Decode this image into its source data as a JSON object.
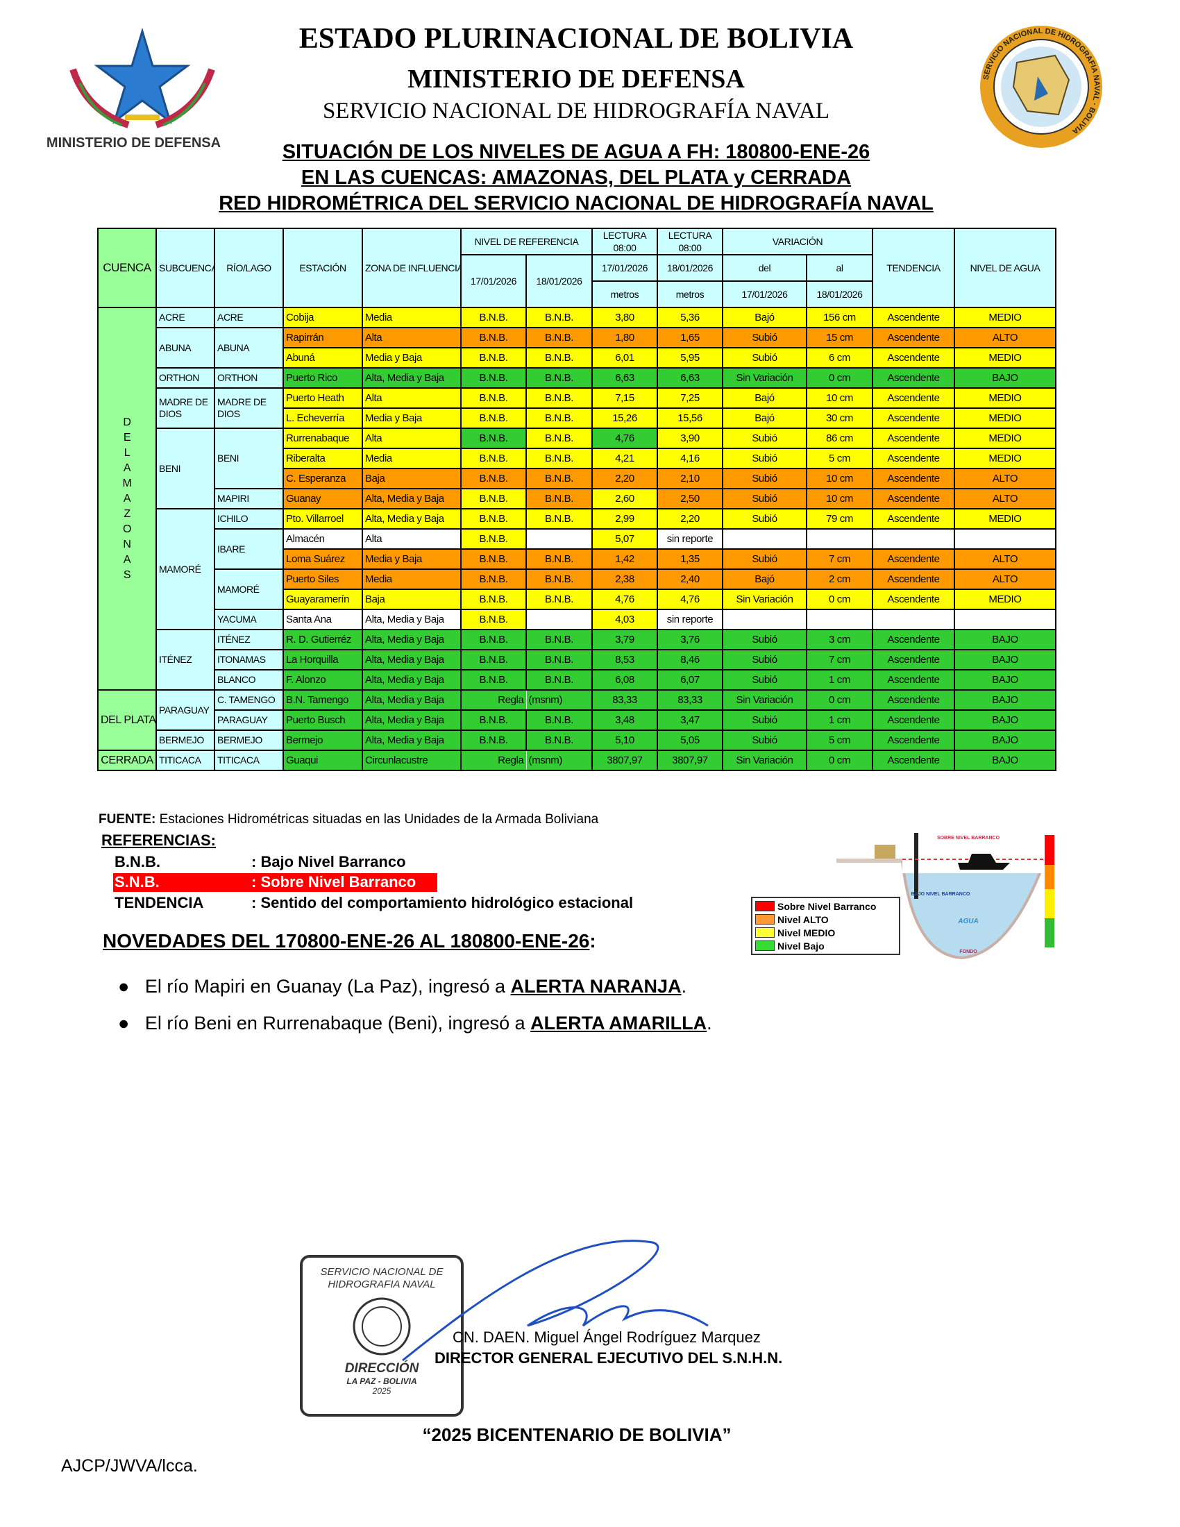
{
  "header": {
    "line1": "ESTADO PLURINACIONAL DE BOLIVIA",
    "line2": "MINISTERIO DE DEFENSA",
    "line3": "SERVICIO NACIONAL DE HIDROGRAFÍA NAVAL",
    "left_logo_text": "MINISTERIO DE DEFENSA",
    "right_logo_text": "SERVICIO NACIONAL DE HIDROGRAFIA NAVAL · BOLIVIA"
  },
  "subtitle": {
    "l1": "SITUACIÓN DE LOS NIVELES DE AGUA A FH: 180800-ENE-26",
    "l2": "EN LAS CUENCAS: AMAZONAS, DEL PLATA y CERRADA",
    "l3": "RED HIDROMÉTRICA DEL SERVICIO NACIONAL DE HIDROGRAFÍA NAVAL"
  },
  "colors": {
    "y": "#ffff00",
    "o": "#ff9900",
    "g": "#33cc33",
    "w": "#ffffff",
    "header": "#ccffff",
    "cuenca": "#99ff99"
  },
  "table": {
    "h": {
      "cuenca": "CUENCA",
      "subcuenca": "SUBCUENCA",
      "rio": "RÍO/LAGO",
      "estacion": "ESTACIÓN",
      "zona": "ZONA DE INFLUENCIA",
      "nivel_ref": "NIVEL DE REFERENCIA",
      "ref17": "17/01/2026",
      "ref18": "18/01/2026",
      "lect1": "LECTURA 08:00",
      "lect2": "LECTURA 08:00",
      "lect17": "17/01/2026",
      "lect18": "18/01/2026",
      "metros1": "metros",
      "metros2": "metros",
      "variacion": "VARIACIÓN",
      "del": "del",
      "al": "al",
      "var17": "17/01/2026",
      "var18": "18/01/2026",
      "tendencia": "TENDENCIA",
      "nivel": "NIVEL DE AGUA"
    },
    "rows": [
      {
        "cuenca": "DEL AMAZONAS",
        "sub": "ACRE",
        "rio": "ACRE",
        "cells": [
          "Cobija",
          "Media",
          "B.N.B.",
          "B.N.B.",
          "3,80",
          "5,36",
          "Bajó",
          "156 cm",
          "Ascendente",
          "MEDIO"
        ],
        "colors": "yyyyyyyyyy"
      },
      {
        "cuenca": "DEL AMAZONAS",
        "sub": "ABUNA",
        "rio": "ABUNA",
        "cells": [
          "Rapirrán",
          "Alta",
          "B.N.B.",
          "B.N.B.",
          "1,80",
          "1,65",
          "Subió",
          "15 cm",
          "Ascendente",
          "ALTO"
        ],
        "colors": "oooooooooo"
      },
      {
        "cuenca": "DEL AMAZONAS",
        "sub": "ABUNA",
        "rio": "ABUNA",
        "cells": [
          "Abuná",
          "Media y Baja",
          "B.N.B.",
          "B.N.B.",
          "6,01",
          "5,95",
          "Subió",
          "6 cm",
          "Ascendente",
          "MEDIO"
        ],
        "colors": "yyyyyyyyyy"
      },
      {
        "cuenca": "DEL AMAZONAS",
        "sub": "ORTHON",
        "rio": "ORTHON",
        "cells": [
          "Puerto Rico",
          "Alta, Media y Baja",
          "B.N.B.",
          "B.N.B.",
          "6,63",
          "6,63",
          "Sin Variación",
          "0 cm",
          "Ascendente",
          "BAJO"
        ],
        "colors": "gggggggggg"
      },
      {
        "cuenca": "DEL AMAZONAS",
        "sub": "MADRE DE DIOS",
        "rio": "MADRE DE DIOS",
        "cells": [
          "Puerto Heath",
          "Alta",
          "B.N.B.",
          "B.N.B.",
          "7,15",
          "7,25",
          "Bajó",
          "10 cm",
          "Ascendente",
          "MEDIO"
        ],
        "colors": "yyyyyyyyyy"
      },
      {
        "cuenca": "DEL AMAZONAS",
        "sub": "MADRE DE DIOS",
        "rio": "MADRE DE DIOS",
        "cells": [
          "L. Echeverría",
          "Media y Baja",
          "B.N.B.",
          "B.N.B.",
          "15,26",
          "15,56",
          "Bajó",
          "30 cm",
          "Ascendente",
          "MEDIO"
        ],
        "colors": "yyyyyyyyyy"
      },
      {
        "cuenca": "DEL AMAZONAS",
        "sub": "BENI",
        "rio": "BENI",
        "cells": [
          "Rurrenabaque",
          "Alta",
          "B.N.B.",
          "B.N.B.",
          "4,76",
          "3,90",
          "Subió",
          "86 cm",
          "Ascendente",
          "MEDIO"
        ],
        "colors": "yygygyyyyy"
      },
      {
        "cuenca": "DEL AMAZONAS",
        "sub": "BENI",
        "rio": "BENI",
        "cells": [
          "Riberalta",
          "Media",
          "B.N.B.",
          "B.N.B.",
          "4,21",
          "4,16",
          "Subió",
          "5 cm",
          "Ascendente",
          "MEDIO"
        ],
        "colors": "yyyyyyyyyy"
      },
      {
        "cuenca": "DEL AMAZONAS",
        "sub": "BENI",
        "rio": "BENI",
        "cells": [
          "C. Esperanza",
          "Baja",
          "B.N.B.",
          "B.N.B.",
          "2,20",
          "2,10",
          "Subió",
          "10 cm",
          "Ascendente",
          "ALTO"
        ],
        "colors": "oooooooooo"
      },
      {
        "cuenca": "DEL AMAZONAS",
        "sub": "BENI",
        "rio": "MAPIRI",
        "cells": [
          "Guanay",
          "Alta, Media y Baja",
          "B.N.B.",
          "B.N.B.",
          "2,60",
          "2,50",
          "Subió",
          "10 cm",
          "Ascendente",
          "ALTO"
        ],
        "colors": "ooyoyooooo"
      },
      {
        "cuenca": "DEL AMAZONAS",
        "sub": "MAMORÉ",
        "rio": "ICHILO",
        "cells": [
          "Pto. Villarroel",
          "Alta, Media y Baja",
          "B.N.B.",
          "B.N.B.",
          "2,99",
          "2,20",
          "Subió",
          "79 cm",
          "Ascendente",
          "MEDIO"
        ],
        "colors": "yyyyyyyyyy"
      },
      {
        "cuenca": "DEL AMAZONAS",
        "sub": "MAMORÉ",
        "rio": "IBARE",
        "cells": [
          "Almacén",
          "Alta",
          "B.N.B.",
          "",
          "5,07",
          "sin reporte",
          "",
          "",
          "",
          ""
        ],
        "colors": "wwywywwwww"
      },
      {
        "cuenca": "DEL AMAZONAS",
        "sub": "MAMORÉ",
        "rio": "IBARE",
        "cells": [
          "Loma Suárez",
          "Media y Baja",
          "B.N.B.",
          "B.N.B.",
          "1,42",
          "1,35",
          "Subió",
          "7 cm",
          "Ascendente",
          "ALTO"
        ],
        "colors": "oooooooooo"
      },
      {
        "cuenca": "DEL AMAZONAS",
        "sub": "MAMORÉ",
        "rio": "MAMORÉ",
        "cells": [
          "Puerto Siles",
          "Media",
          "B.N.B.",
          "B.N.B.",
          "2,38",
          "2,40",
          "Bajó",
          "2 cm",
          "Ascendente",
          "ALTO"
        ],
        "colors": "oooooooooo"
      },
      {
        "cuenca": "DEL AMAZONAS",
        "sub": "MAMORÉ",
        "rio": "MAMORÉ",
        "cells": [
          "Guayaramerín",
          "Baja",
          "B.N.B.",
          "B.N.B.",
          "4,76",
          "4,76",
          "Sin Variación",
          "0 cm",
          "Ascendente",
          "MEDIO"
        ],
        "colors": "yyyyyyyyyy"
      },
      {
        "cuenca": "DEL AMAZONAS",
        "sub": "MAMORÉ",
        "rio": "YACUMA",
        "cells": [
          "Santa Ana",
          "Alta, Media y Baja",
          "B.N.B.",
          "",
          "4,03",
          "sin reporte",
          "",
          "",
          "",
          ""
        ],
        "colors": "wwywywwwww"
      },
      {
        "cuenca": "DEL AMAZONAS",
        "sub": "ITÉNEZ",
        "rio": "ITÉNEZ",
        "cells": [
          "R. D. Gutierréz",
          "Alta, Media y Baja",
          "B.N.B.",
          "B.N.B.",
          "3,79",
          "3,76",
          "Subió",
          "3 cm",
          "Ascendente",
          "BAJO"
        ],
        "colors": "gggggggggg"
      },
      {
        "cuenca": "DEL AMAZONAS",
        "sub": "ITÉNEZ",
        "rio": "ITONAMAS",
        "cells": [
          "La Horquilla",
          "Alta, Media y Baja",
          "B.N.B.",
          "B.N.B.",
          "8,53",
          "8,46",
          "Subió",
          "7 cm",
          "Ascendente",
          "BAJO"
        ],
        "colors": "gggggggggg"
      },
      {
        "cuenca": "DEL AMAZONAS",
        "sub": "ITÉNEZ",
        "rio": "BLANCO",
        "cells": [
          "F. Alonzo",
          "Alta, Media y Baja",
          "B.N.B.",
          "B.N.B.",
          "6,08",
          "6,07",
          "Subió",
          "1 cm",
          "Ascendente",
          "BAJO"
        ],
        "colors": "gggggggggg"
      },
      {
        "cuenca": "DEL PLATA",
        "sub": "PARAGUAY",
        "rio": "C. TAMENGO",
        "cells": [
          "B.N. Tamengo",
          "Alta, Media y Baja",
          "Regla",
          "(msnm)",
          "83,33",
          "83,33",
          "Sin Variación",
          "0 cm",
          "Ascendente",
          "BAJO"
        ],
        "colors": "gggggggggg"
      },
      {
        "cuenca": "DEL PLATA",
        "sub": "PARAGUAY",
        "rio": "PARAGUAY",
        "cells": [
          "Puerto Busch",
          "Alta, Media y Baja",
          "B.N.B.",
          "B.N.B.",
          "3,48",
          "3,47",
          "Subió",
          "1 cm",
          "Ascendente",
          "BAJO"
        ],
        "colors": "gggggggggg"
      },
      {
        "cuenca": "DEL PLATA",
        "sub": "BERMEJO",
        "rio": "BERMEJO",
        "cells": [
          "Bermejo",
          "Alta, Media y Baja",
          "B.N.B.",
          "B.N.B.",
          "5,10",
          "5,05",
          "Subió",
          "5 cm",
          "Ascendente",
          "BAJO"
        ],
        "colors": "gggggggggg"
      },
      {
        "cuenca": "CERRADA",
        "sub": "TITICACA",
        "rio": "TITICACA",
        "cells": [
          "Guaqui",
          "Circunlacustre",
          "Regla",
          "(msnm)",
          "3807,97",
          "3807,97",
          "Sin Variación",
          "0 cm",
          "Ascendente",
          "BAJO"
        ],
        "colors": "gggggggggg"
      }
    ]
  },
  "fuente": {
    "label": "FUENTE:",
    "text": " Estaciones Hidrométricas situadas en las Unidades de la Armada Boliviana"
  },
  "referencias": {
    "title": "REFERENCIAS:",
    "items": [
      {
        "key": "B.N.B.",
        "value": ": Bajo Nivel Barranco"
      },
      {
        "key": "S.N.B.",
        "value": ": Sobre Nivel Barranco"
      },
      {
        "key": "TENDENCIA",
        "value": ": Sentido del comportamiento hidrológico estacional"
      }
    ]
  },
  "legend": {
    "items": [
      {
        "label": "Sobre Nivel Barranco",
        "color": "#ff0000"
      },
      {
        "label": "Nivel ALTO",
        "color": "#ff9933"
      },
      {
        "label": "Nivel MEDIO",
        "color": "#ffff33"
      },
      {
        "label": "Nivel Bajo",
        "color": "#33dd33"
      }
    ],
    "diagram": {
      "sobre": "SOBRE NIVEL BARRANCO",
      "bajo": "BAJO NIVEL BARRANCO",
      "agua": "AGUA",
      "fondo": "FONDO"
    }
  },
  "novedades": {
    "title": "NOVEDADES DEL 170800-ENE-26  AL 180800-ENE-26",
    "colon": ":",
    "items": [
      {
        "text": "El río Mapiri en Guanay (La Paz), ingresó a ",
        "alert": "ALERTA NARANJA",
        "end": "."
      },
      {
        "text": "El río Beni en Rurrenabaque (Beni), ingresó a ",
        "alert": "ALERTA AMARILLA",
        "end": "."
      }
    ]
  },
  "signature": {
    "stamp_top": "SERVICIO NACIONAL DE HIDROGRAFIA NAVAL",
    "stamp_bottom1": "DIRECCIÓN",
    "stamp_bottom2": "LA PAZ - BOLIVIA",
    "stamp_year": "2025",
    "name": "CN. DAEN. Miguel Ángel Rodríguez Marquez",
    "title": "DIRECTOR GENERAL EJECUTIVO DEL S.N.H.N."
  },
  "footer": {
    "motto": "“2025 BICENTENARIO DE BOLIVIA”",
    "initials": "AJCP/JWVA/lcca."
  }
}
